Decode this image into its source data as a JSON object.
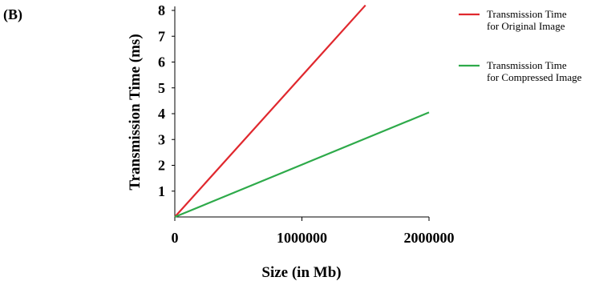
{
  "panel_label": "(B)",
  "chart_data": {
    "type": "line",
    "xlabel": "Size (in Mb)",
    "ylabel": "Transmission Time (ms)",
    "xlim": [
      0,
      2000000
    ],
    "ylim": [
      0,
      8
    ],
    "xticks": [
      0,
      1000000,
      2000000
    ],
    "xtick_labels": [
      "0",
      "1000000",
      "2000000"
    ],
    "yticks": [
      1,
      2,
      3,
      4,
      5,
      6,
      7,
      8
    ],
    "ytick_labels": [
      "1",
      "2",
      "3",
      "4",
      "5",
      "6",
      "7",
      "8"
    ],
    "grid": false,
    "legend_position": "top-right",
    "series": [
      {
        "name": "Transmission Time for Original Image",
        "legend_lines": [
          "Transmission Time",
          "for Original Image"
        ],
        "color": "#e0282e",
        "x": [
          0,
          1500000
        ],
        "y": [
          0,
          8.2
        ]
      },
      {
        "name": "Transmission Time for Compressed Image",
        "legend_lines": [
          "Transmission Time",
          "for Compressed Image"
        ],
        "color": "#2eaa4a",
        "x": [
          0,
          2000000
        ],
        "y": [
          0,
          4.05
        ]
      }
    ]
  }
}
